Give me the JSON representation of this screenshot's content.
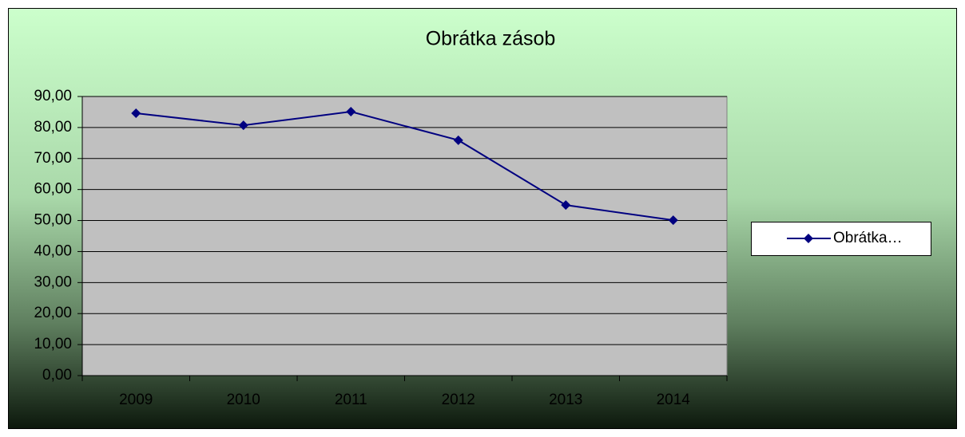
{
  "chart_data": {
    "type": "line",
    "title": "Obrátka zásob",
    "categories": [
      "2009",
      "2010",
      "2011",
      "2012",
      "2013",
      "2014"
    ],
    "series": [
      {
        "name": "Obrátka…",
        "color": "#000080",
        "values": [
          84.6,
          80.7,
          85.1,
          75.9,
          55.0,
          50.1
        ]
      }
    ],
    "ylim": [
      0,
      90
    ],
    "yticks": [
      {
        "value": 0,
        "label": "0,00"
      },
      {
        "value": 10,
        "label": "10,00"
      },
      {
        "value": 20,
        "label": "20,00"
      },
      {
        "value": 30,
        "label": "30,00"
      },
      {
        "value": 40,
        "label": "40,00"
      },
      {
        "value": 50,
        "label": "50,00"
      },
      {
        "value": 60,
        "label": "60,00"
      },
      {
        "value": 70,
        "label": "70,00"
      },
      {
        "value": 80,
        "label": "80,00"
      },
      {
        "value": 90,
        "label": "90,00"
      }
    ],
    "grid": true,
    "legend": "right"
  }
}
